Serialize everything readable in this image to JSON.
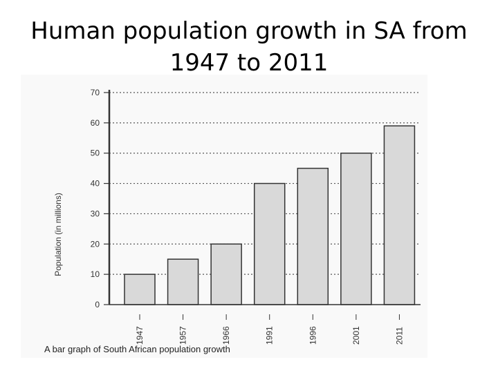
{
  "slide": {
    "title_line1": "Human population growth in SA from",
    "title_line2": "1947 to 2011"
  },
  "chart_data": {
    "type": "bar",
    "categories": [
      "1947",
      "1957",
      "1966",
      "1991",
      "1996",
      "2001",
      "2011"
    ],
    "values": [
      10,
      15,
      20,
      40,
      45,
      50,
      59
    ],
    "title": "",
    "xlabel": "",
    "ylabel": "Population (in millions)",
    "ylim": [
      0,
      70
    ],
    "yticks": [
      0,
      10,
      20,
      30,
      40,
      50,
      60,
      70
    ],
    "grid": "dotted-horizontal",
    "caption": "A bar graph of South African population growth"
  },
  "colors": {
    "bar_fill": "#d9d9d9",
    "bar_stroke": "#333333",
    "axis": "#333333",
    "grid": "#555555",
    "text": "#333333"
  }
}
